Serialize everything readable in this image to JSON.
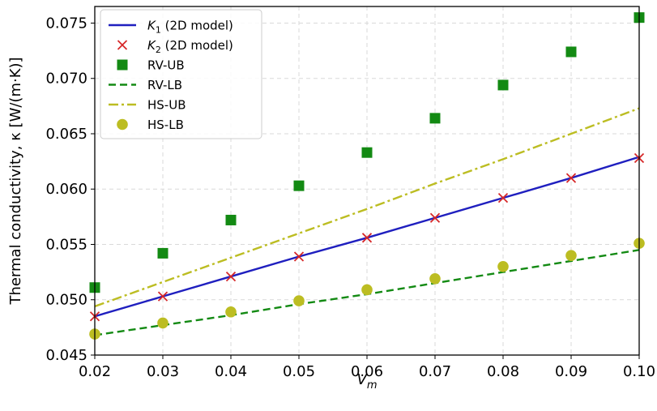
{
  "chart_data": {
    "type": "line",
    "xlabel": "V",
    "xlabel_sub": "m",
    "ylabel": "Thermal conductivity, κ [W/(m·K)]",
    "xlim": [
      0.02,
      0.1
    ],
    "ylim": [
      0.045,
      0.0765
    ],
    "x_ticks": [
      "0.02",
      "0.03",
      "0.04",
      "0.05",
      "0.06",
      "0.07",
      "0.08",
      "0.09",
      "0.10"
    ],
    "y_ticks": [
      "0.045",
      "0.050",
      "0.055",
      "0.060",
      "0.065",
      "0.070",
      "0.075"
    ],
    "grid": true,
    "legend_position": "top-left",
    "x": [
      0.02,
      0.03,
      0.04,
      0.05,
      0.06,
      0.07,
      0.08,
      0.09,
      0.1
    ],
    "series": [
      {
        "name": "K1 (2D model)",
        "legend_base": "K",
        "legend_sub": "1",
        "legend_rest": " (2D model)",
        "style": "line-solid",
        "color": "#1f1fbf",
        "y": [
          0.0485,
          0.0503,
          0.0521,
          0.0539,
          0.0556,
          0.0574,
          0.0592,
          0.061,
          0.0629
        ]
      },
      {
        "name": "K2 (2D model)",
        "legend_base": "K",
        "legend_sub": "2",
        "legend_rest": " (2D model)",
        "style": "marker-x",
        "color": "#d62728",
        "y": [
          0.0485,
          0.0503,
          0.0521,
          0.0539,
          0.0556,
          0.0574,
          0.0592,
          0.061,
          0.0628
        ]
      },
      {
        "name": "RV-UB",
        "style": "marker-square",
        "color": "#138a13",
        "y": [
          0.0511,
          0.0542,
          0.0572,
          0.0603,
          0.0633,
          0.0664,
          0.0694,
          0.0724,
          0.0755
        ]
      },
      {
        "name": "RV-LB",
        "style": "line-dashed",
        "color": "#138a13",
        "y": [
          0.0468,
          0.0477,
          0.0486,
          0.0496,
          0.0505,
          0.0515,
          0.0525,
          0.0535,
          0.0545
        ]
      },
      {
        "name": "HS-UB",
        "style": "line-dashdot",
        "color": "#bcbd22",
        "y": [
          0.0494,
          0.0516,
          0.0538,
          0.056,
          0.0582,
          0.0605,
          0.0627,
          0.065,
          0.0673
        ]
      },
      {
        "name": "HS-LB",
        "style": "marker-circle",
        "color": "#bcbd22",
        "y": [
          0.0469,
          0.0479,
          0.0489,
          0.0499,
          0.0509,
          0.0519,
          0.053,
          0.054,
          0.0551
        ]
      }
    ]
  }
}
